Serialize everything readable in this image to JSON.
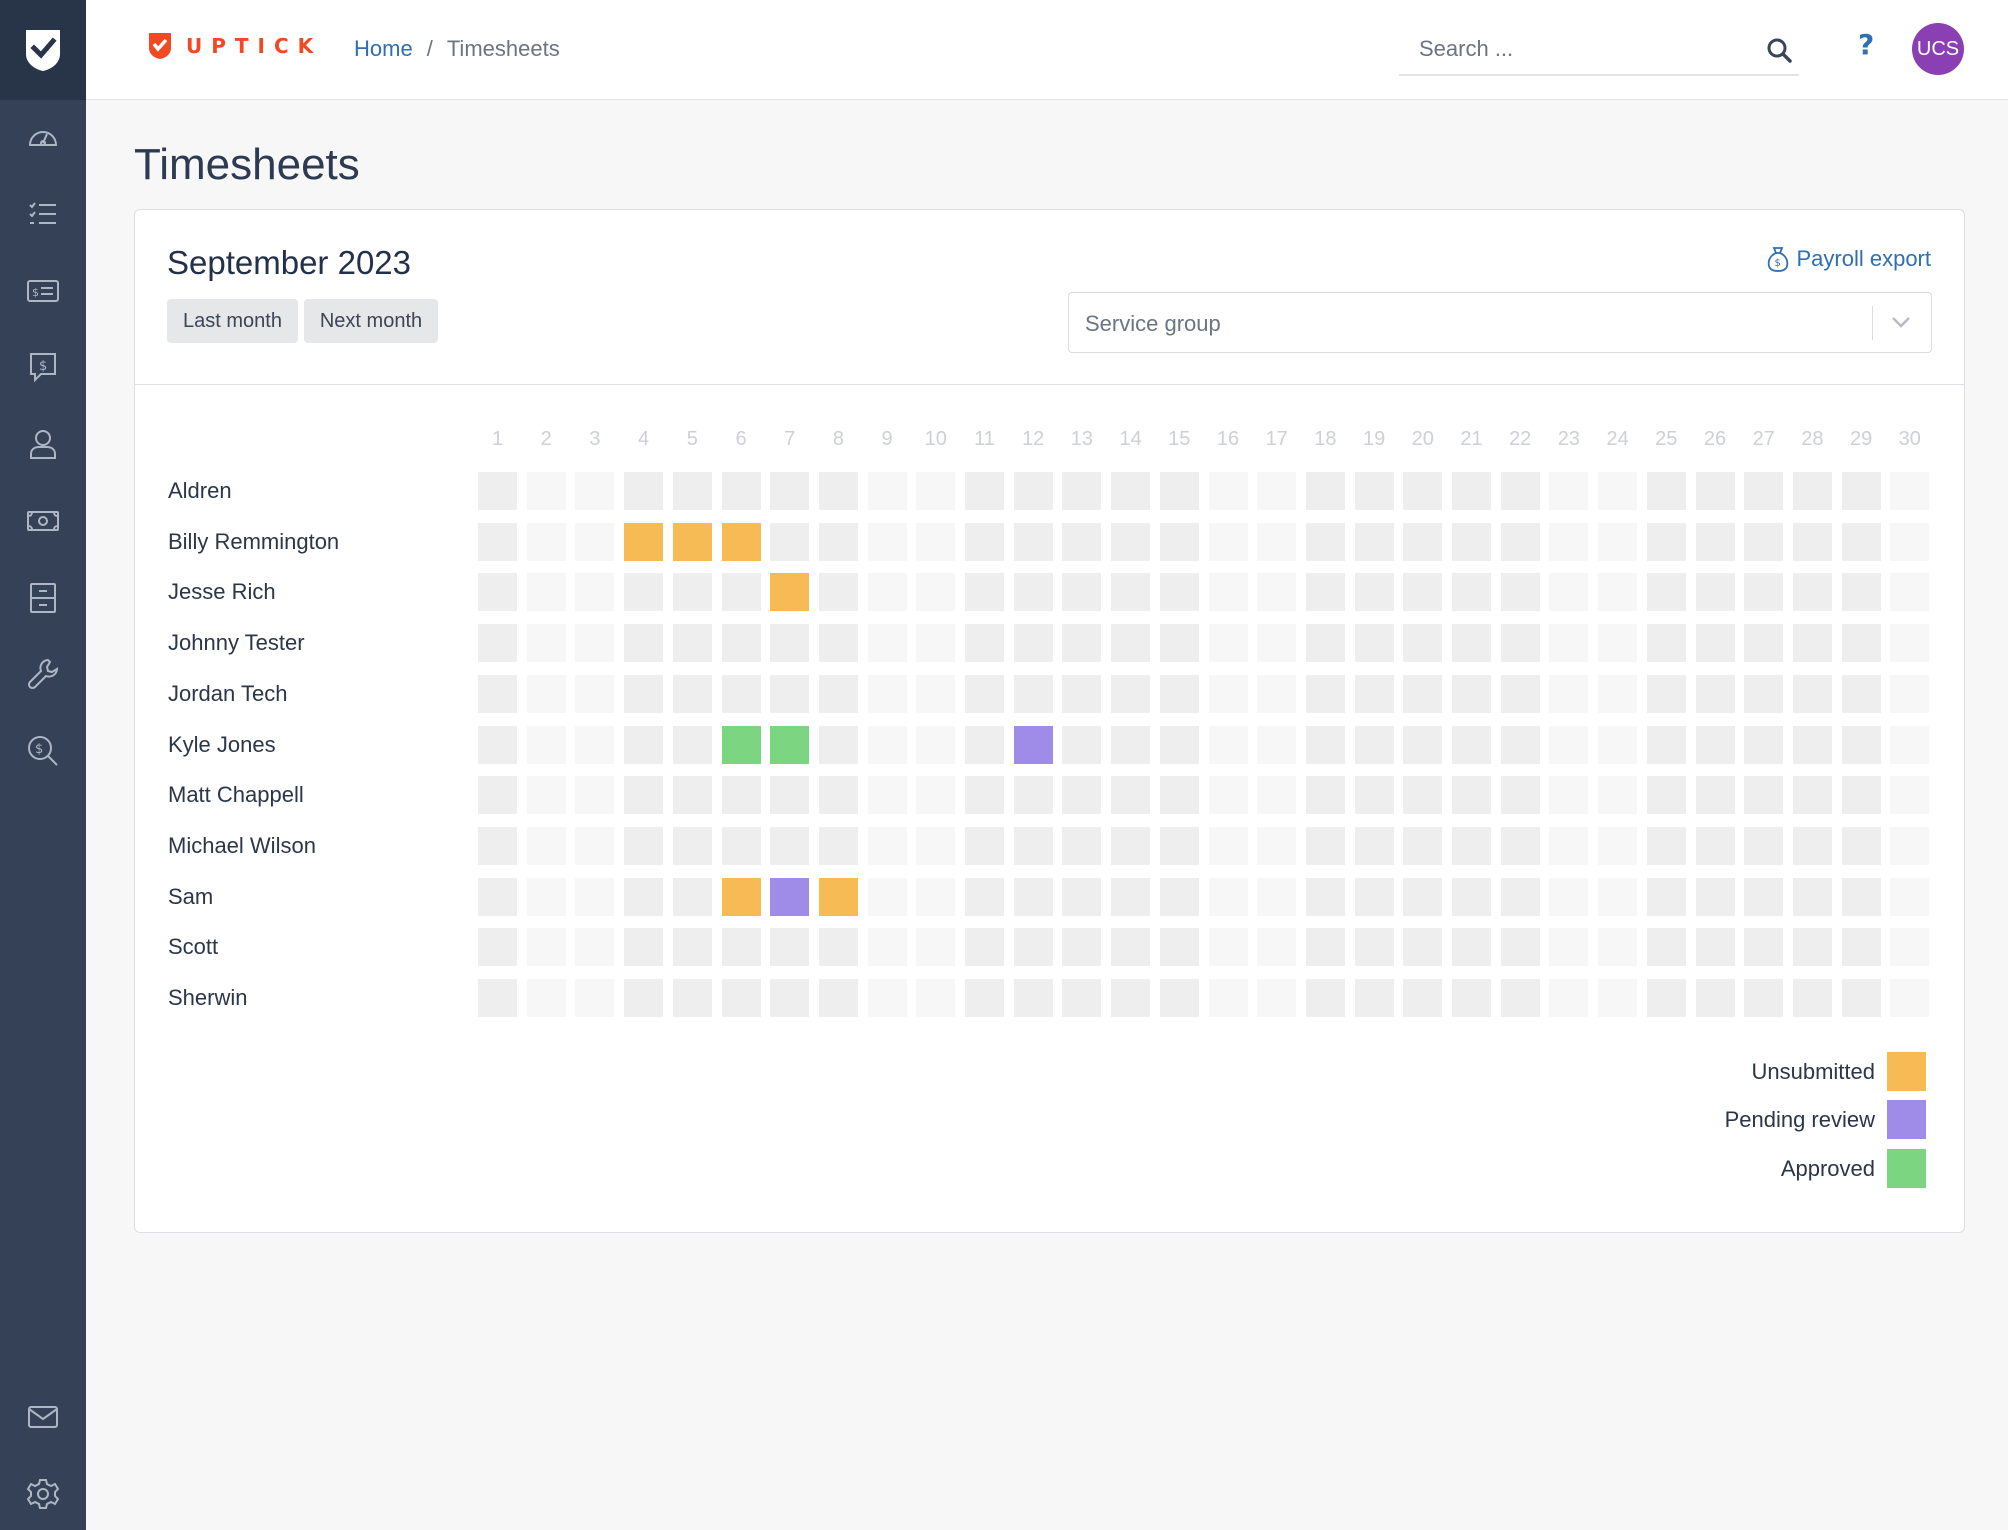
{
  "brand": {
    "name": "UPTICK"
  },
  "breadcrumb": {
    "home": "Home",
    "separator": "/",
    "current": "Timesheets"
  },
  "search": {
    "placeholder": "Search ..."
  },
  "help": {
    "label": "?"
  },
  "user": {
    "initials": "UCS",
    "avatar_color": "#8a3fb3"
  },
  "sidebar": {
    "items": [
      {
        "icon": "dashboard-gauge-icon"
      },
      {
        "icon": "task-list-icon"
      },
      {
        "icon": "invoice-card-icon"
      },
      {
        "icon": "quote-message-icon"
      },
      {
        "icon": "user-icon"
      },
      {
        "icon": "cash-icon"
      },
      {
        "icon": "cabinet-icon"
      },
      {
        "icon": "wrench-icon"
      },
      {
        "icon": "money-search-icon"
      }
    ],
    "bottom_items": [
      {
        "icon": "mail-icon"
      },
      {
        "icon": "settings-gear-icon"
      }
    ]
  },
  "page": {
    "title": "Timesheets"
  },
  "card": {
    "month": "September 2023",
    "last_month_label": "Last month",
    "next_month_label": "Next month",
    "payroll_export_label": "Payroll export",
    "service_group_placeholder": "Service group"
  },
  "colors": {
    "unsubmitted": "#f6bb54",
    "pending_review": "#9f8ce9",
    "approved": "#7bd581",
    "weekday_empty": "#eeeeef",
    "weekend_empty": "#f7f7f7"
  },
  "calendar": {
    "days": [
      "1",
      "2",
      "3",
      "4",
      "5",
      "6",
      "7",
      "8",
      "9",
      "10",
      "11",
      "12",
      "13",
      "14",
      "15",
      "16",
      "17",
      "18",
      "19",
      "20",
      "21",
      "22",
      "23",
      "24",
      "25",
      "26",
      "27",
      "28",
      "29",
      "30"
    ],
    "weekend_days": [
      2,
      3,
      9,
      10,
      16,
      17,
      23,
      24,
      30
    ],
    "rows": [
      {
        "name": "Aldren",
        "entries": {}
      },
      {
        "name": "Billy Remmington",
        "entries": {
          "4": "unsubmitted",
          "5": "unsubmitted",
          "6": "unsubmitted"
        }
      },
      {
        "name": "Jesse Rich",
        "entries": {
          "7": "unsubmitted"
        }
      },
      {
        "name": "Johnny Tester",
        "entries": {}
      },
      {
        "name": "Jordan Tech",
        "entries": {}
      },
      {
        "name": "Kyle Jones",
        "entries": {
          "6": "approved",
          "7": "approved",
          "12": "pending_review"
        }
      },
      {
        "name": "Matt Chappell",
        "entries": {}
      },
      {
        "name": "Michael Wilson",
        "entries": {}
      },
      {
        "name": "Sam",
        "entries": {
          "6": "unsubmitted",
          "7": "pending_review",
          "8": "unsubmitted"
        }
      },
      {
        "name": "Scott",
        "entries": {}
      },
      {
        "name": "Sherwin",
        "entries": {}
      }
    ]
  },
  "legend": [
    {
      "key": "unsubmitted",
      "label": "Unsubmitted"
    },
    {
      "key": "pending_review",
      "label": "Pending review"
    },
    {
      "key": "approved",
      "label": "Approved"
    }
  ]
}
